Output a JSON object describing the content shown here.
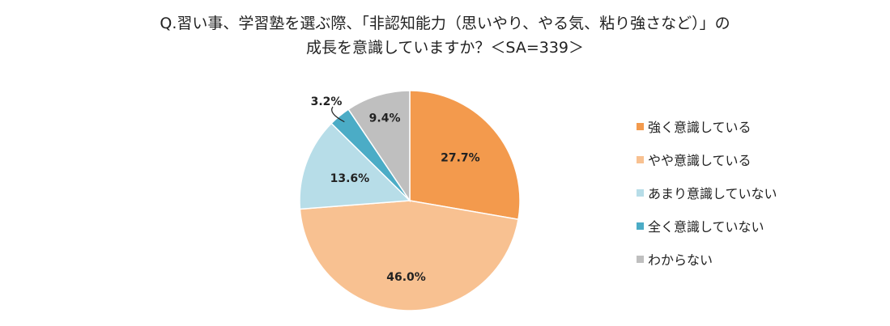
{
  "chart_data": {
    "type": "pie",
    "title_line1": "Q.習い事、学習塾を選ぶ際、「非認知能力（思いやり、やる気、粘り強さなど）」の",
    "title_line2": "成長を意識していますか？＜SA=339＞",
    "categories": [
      "強く意識している",
      "やや意識している",
      "あまり意識していない",
      "全く意識していない",
      "わからない"
    ],
    "values": [
      27.7,
      46.0,
      13.6,
      3.2,
      9.4
    ],
    "data_labels": [
      "27.7%",
      "46.0%",
      "13.6%",
      "3.2%",
      "9.4%"
    ],
    "colors": [
      "#F39A4D",
      "#F8C191",
      "#B7DDE8",
      "#4BACC6",
      "#BFBFBF"
    ],
    "legend_position": "right",
    "start": "12 o'clock",
    "direction": "clockwise"
  }
}
